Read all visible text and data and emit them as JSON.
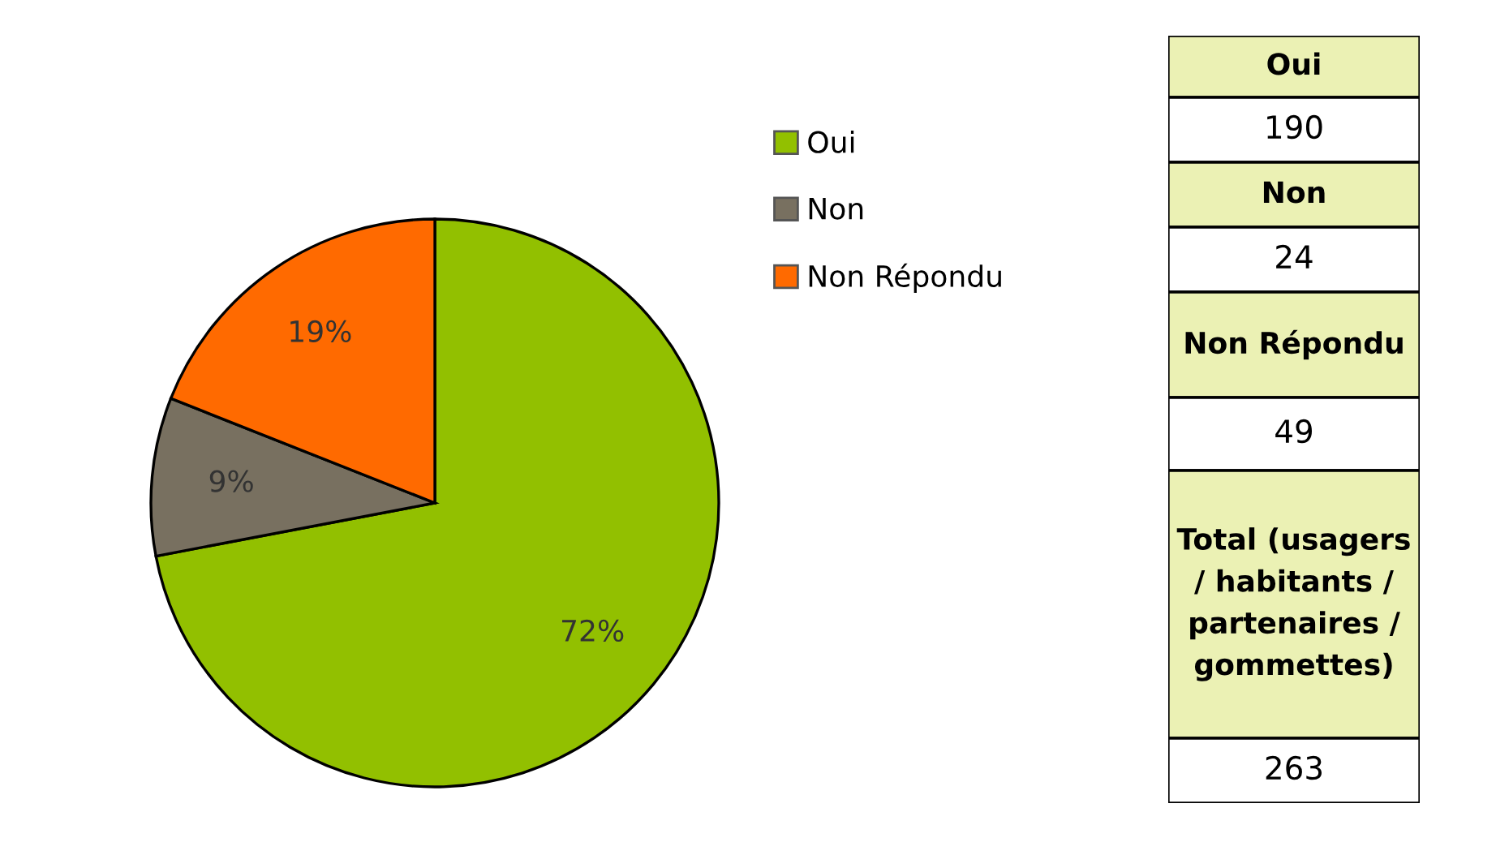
{
  "chart_data": [
    {
      "type": "pie",
      "categories": [
        "Oui",
        "Non",
        "Non Répondu"
      ],
      "values": [
        72,
        9,
        19
      ],
      "colors": [
        "#92c000",
        "#787060",
        "#ff6a00"
      ],
      "value_labels": [
        "72%",
        "9%",
        "19%"
      ],
      "legend": "right"
    },
    {
      "type": "other",
      "annotations": [
        "Oui",
        "190",
        "Non",
        "24",
        "Non Répondu",
        "49",
        "Total (usagers / habitants / partenaires / gommettes)",
        "263"
      ]
    }
  ]
}
